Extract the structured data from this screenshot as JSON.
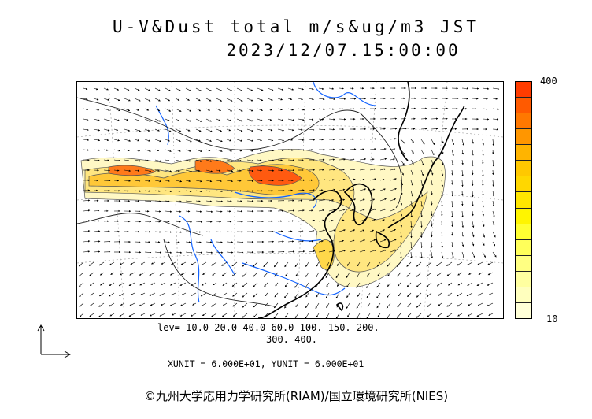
{
  "header": {
    "title_line1": "U-V&Dust total m/s&ug/m3 JST",
    "title_line2": "2023/12/07.15:00:00"
  },
  "colorbar": {
    "max_label": "400",
    "min_label": "10",
    "colors_top_to_bottom": [
      "#ff3c00",
      "#ff5a00",
      "#ff7800",
      "#ff9600",
      "#ffb400",
      "#ffc800",
      "#ffd700",
      "#ffe600",
      "#fff500",
      "#ffff32",
      "#ffff5a",
      "#ffff82",
      "#ffffa0",
      "#ffffbe",
      "#ffffd7"
    ]
  },
  "contour_levels": {
    "line1": "lev= 10.0 20.0 40.0 60.0 100. 150. 200.",
    "line2": "300. 400."
  },
  "units": {
    "text": "XUNIT = 6.000E+01, YUNIT = 6.000E+01"
  },
  "copyright": "©九州大学応用力学研究所(RIAM)/国立環境研究所(NIES)",
  "map": {
    "colors": {
      "coast": "#000000",
      "rivers": "#1464ff",
      "border": "#333333",
      "dust_low": "#fff6c0",
      "dust_mid": "#ffd84a",
      "dust_high": "#ff5a1a"
    },
    "icons": {
      "reference_vector": "axis-arrows-icon"
    }
  }
}
